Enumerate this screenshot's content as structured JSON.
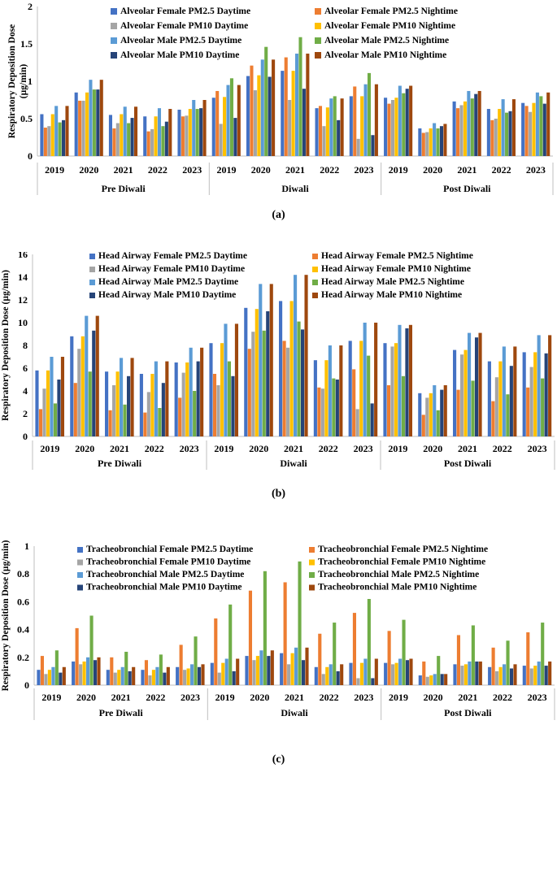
{
  "colors": [
    "#4472c4",
    "#ed7d31",
    "#a5a5a5",
    "#ffc000",
    "#5b9bd5",
    "#70ad47",
    "#264478",
    "#9e480e"
  ],
  "chart_data": [
    {
      "type": "bar",
      "panel": "a",
      "caption": "(a)",
      "ylabel": "Respiratory Deposition Dose\n(µg/min)",
      "ylim": [
        0,
        2
      ],
      "yticks": [
        "0",
        "0.5",
        "1",
        "1.5",
        "2"
      ],
      "yticksValues": [
        0,
        0.5,
        1,
        1.5,
        2
      ],
      "groups": [
        "Pre Diwali",
        "Diwali",
        "Post Diwali"
      ],
      "categories": [
        "2019",
        "2020",
        "2021",
        "2022",
        "2023",
        "2019",
        "2020",
        "2021",
        "2022",
        "2023",
        "2019",
        "2020",
        "2021",
        "2022",
        "2023"
      ],
      "series": [
        {
          "name": "Alveolar Female PM2.5 Daytime",
          "values": [
            0.56,
            0.85,
            0.55,
            0.53,
            0.62,
            0.78,
            1.07,
            1.14,
            0.64,
            0.8,
            0.78,
            0.37,
            0.73,
            0.63,
            0.71
          ]
        },
        {
          "name": "Alveolar Female PM2.5 Nightime",
          "values": [
            0.38,
            0.74,
            0.37,
            0.33,
            0.53,
            0.87,
            1.21,
            1.32,
            0.67,
            0.93,
            0.7,
            0.31,
            0.64,
            0.48,
            0.67
          ]
        },
        {
          "name": "Alveolar Female PM10 Daytime",
          "values": [
            0.4,
            0.74,
            0.44,
            0.36,
            0.54,
            0.43,
            0.88,
            0.75,
            0.4,
            0.23,
            0.75,
            0.32,
            0.68,
            0.5,
            0.59
          ]
        },
        {
          "name": "Alveolar Female PM10 Nightime",
          "values": [
            0.56,
            0.85,
            0.56,
            0.53,
            0.63,
            0.79,
            1.08,
            1.14,
            0.65,
            0.8,
            0.78,
            0.37,
            0.73,
            0.63,
            0.71
          ]
        },
        {
          "name": "Alveolar Male PM2.5 Daytime",
          "values": [
            0.67,
            1.02,
            0.66,
            0.64,
            0.75,
            0.95,
            1.29,
            1.37,
            0.77,
            0.96,
            0.94,
            0.44,
            0.87,
            0.76,
            0.85
          ]
        },
        {
          "name": "Alveolar Male PM2.5 Nightime",
          "values": [
            0.45,
            0.89,
            0.44,
            0.4,
            0.63,
            1.04,
            1.46,
            1.59,
            0.8,
            1.11,
            0.84,
            0.37,
            0.77,
            0.58,
            0.8
          ]
        },
        {
          "name": "Alveolar Male PM10 Daytime",
          "values": [
            0.48,
            0.89,
            0.51,
            0.46,
            0.64,
            0.51,
            1.06,
            0.9,
            0.48,
            0.28,
            0.9,
            0.4,
            0.83,
            0.6,
            0.7
          ]
        },
        {
          "name": "Alveolar Male PM10 Nightime",
          "values": [
            0.67,
            1.02,
            0.66,
            0.63,
            0.75,
            0.95,
            1.29,
            1.37,
            0.77,
            0.96,
            0.94,
            0.43,
            0.87,
            0.76,
            0.85
          ]
        }
      ]
    },
    {
      "type": "bar",
      "panel": "b",
      "caption": "(b)",
      "ylabel": "Respiratory Deposition Dose (µg/min)",
      "ylim": [
        0,
        16
      ],
      "yticks": [
        "0",
        "2",
        "4",
        "6",
        "8",
        "10",
        "12",
        "14",
        "16"
      ],
      "yticksValues": [
        0,
        2,
        4,
        6,
        8,
        10,
        12,
        14,
        16
      ],
      "groups": [
        "Pre Diwali",
        "Diwali",
        "Post Diwali"
      ],
      "categories": [
        "2019",
        "2020",
        "2021",
        "2022",
        "2023",
        "2019",
        "2020",
        "2021",
        "2022",
        "2023",
        "2019",
        "2020",
        "2021",
        "2022",
        "2023"
      ],
      "series": [
        {
          "name": "Head Airway Female PM2.5 Daytime",
          "values": [
            5.8,
            8.8,
            5.7,
            5.5,
            6.5,
            8.2,
            11.3,
            11.9,
            6.7,
            8.4,
            8.2,
            3.8,
            7.6,
            6.6,
            7.4
          ]
        },
        {
          "name": "Head Airway Female PM2.5 Nightime",
          "values": [
            2.4,
            4.7,
            2.3,
            2.1,
            3.4,
            5.5,
            7.7,
            8.4,
            4.3,
            5.9,
            4.5,
            1.9,
            4.1,
            3.1,
            4.3
          ]
        },
        {
          "name": "Head Airway Female PM10 Daytime",
          "values": [
            4.2,
            7.7,
            4.5,
            3.9,
            5.6,
            4.5,
            9.2,
            7.8,
            4.2,
            2.4,
            7.9,
            3.4,
            7.2,
            5.2,
            6.1
          ]
        },
        {
          "name": "Head Airway Female PM10 Nightime",
          "values": [
            5.8,
            8.8,
            5.7,
            5.5,
            6.5,
            8.2,
            11.2,
            11.9,
            6.7,
            8.4,
            8.2,
            3.8,
            7.6,
            6.6,
            7.4
          ]
        },
        {
          "name": "Head Airway Male PM2.5 Daytime",
          "values": [
            7.0,
            10.6,
            6.9,
            6.6,
            7.8,
            9.9,
            13.4,
            14.2,
            8.0,
            10.0,
            9.8,
            4.5,
            9.1,
            7.9,
            8.9
          ]
        },
        {
          "name": "Head Airway Male PM2.5 Nightime",
          "values": [
            2.9,
            5.7,
            2.8,
            2.5,
            4.0,
            6.6,
            9.3,
            10.1,
            5.1,
            7.1,
            5.3,
            2.3,
            4.9,
            3.7,
            5.1
          ]
        },
        {
          "name": "Head Airway Male PM10 Daytime",
          "values": [
            5.0,
            9.3,
            5.3,
            4.7,
            6.6,
            5.3,
            11.0,
            9.4,
            5.0,
            2.9,
            9.5,
            4.1,
            8.7,
            6.2,
            7.3
          ]
        },
        {
          "name": "Head Airway Male PM10 Nightime",
          "values": [
            7.0,
            10.6,
            6.9,
            6.6,
            7.8,
            9.9,
            13.4,
            14.2,
            8.0,
            10.0,
            9.8,
            4.5,
            9.1,
            7.9,
            8.9
          ]
        }
      ]
    },
    {
      "type": "bar",
      "panel": "c",
      "caption": "(c)",
      "ylabel": "Respiratory Deposition Dose (µg/min)",
      "ylim": [
        0,
        1
      ],
      "yticks": [
        "0",
        "0.2",
        "0.4",
        "0.6",
        "0.8",
        "1"
      ],
      "yticksValues": [
        0,
        0.2,
        0.4,
        0.6,
        0.8,
        1
      ],
      "groups": [
        "Pre Diwali",
        "Diwali",
        "Post Diwali"
      ],
      "categories": [
        "2019",
        "2020",
        "2021",
        "2022",
        "2023",
        "2019",
        "2020",
        "2021",
        "2022",
        "2023",
        "2019",
        "2020",
        "2021",
        "2022",
        "2023"
      ],
      "series": [
        {
          "name": "Tracheobronchial Female PM2.5 Daytime",
          "values": [
            0.11,
            0.17,
            0.11,
            0.11,
            0.13,
            0.16,
            0.21,
            0.23,
            0.13,
            0.16,
            0.16,
            0.07,
            0.15,
            0.13,
            0.14
          ]
        },
        {
          "name": "Tracheobronchial Female PM2.5 Nightime",
          "values": [
            0.21,
            0.41,
            0.2,
            0.18,
            0.29,
            0.48,
            0.68,
            0.74,
            0.37,
            0.52,
            0.39,
            0.17,
            0.36,
            0.27,
            0.38
          ]
        },
        {
          "name": "Tracheobronchial Female PM10 Daytime",
          "values": [
            0.08,
            0.15,
            0.09,
            0.07,
            0.11,
            0.09,
            0.18,
            0.15,
            0.08,
            0.05,
            0.15,
            0.06,
            0.14,
            0.1,
            0.12
          ]
        },
        {
          "name": "Tracheobronchial Female PM10 Nightime",
          "values": [
            0.11,
            0.17,
            0.11,
            0.11,
            0.12,
            0.16,
            0.21,
            0.23,
            0.13,
            0.16,
            0.16,
            0.07,
            0.15,
            0.13,
            0.14
          ]
        },
        {
          "name": "Tracheobronchial Male PM2.5 Daytime",
          "values": [
            0.13,
            0.2,
            0.13,
            0.13,
            0.15,
            0.19,
            0.25,
            0.27,
            0.15,
            0.19,
            0.19,
            0.08,
            0.17,
            0.15,
            0.17
          ]
        },
        {
          "name": "Tracheobronchial Male PM2.5 Nightime",
          "values": [
            0.25,
            0.5,
            0.24,
            0.22,
            0.35,
            0.58,
            0.82,
            0.89,
            0.45,
            0.62,
            0.47,
            0.21,
            0.43,
            0.32,
            0.45
          ]
        },
        {
          "name": "Tracheobronchial Male PM10 Daytime",
          "values": [
            0.09,
            0.18,
            0.1,
            0.09,
            0.13,
            0.1,
            0.21,
            0.18,
            0.1,
            0.05,
            0.18,
            0.08,
            0.17,
            0.12,
            0.14
          ]
        },
        {
          "name": "Tracheobronchial Male PM10 Nightime",
          "values": [
            0.13,
            0.2,
            0.13,
            0.13,
            0.15,
            0.19,
            0.25,
            0.27,
            0.15,
            0.19,
            0.19,
            0.08,
            0.17,
            0.15,
            0.17
          ]
        }
      ]
    }
  ]
}
